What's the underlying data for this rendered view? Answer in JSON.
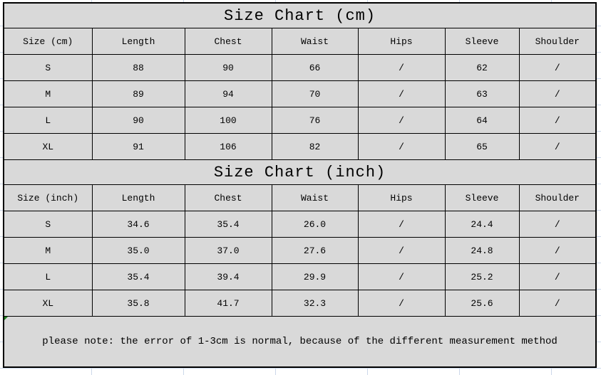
{
  "colors": {
    "cell_fill": "#d9d9d9",
    "border": "#000000",
    "background_grid": "#ccd8ea",
    "error_marker_green": "#1e7e1e"
  },
  "chart_data": [
    {
      "type": "table",
      "title": "Size Chart (cm)",
      "columns": [
        "Size (cm)",
        "Length",
        "Chest",
        "Waist",
        "Hips",
        "Sleeve",
        "Shoulder"
      ],
      "rows": [
        [
          "S",
          "88",
          "90",
          "66",
          "/",
          "62",
          "/"
        ],
        [
          "M",
          "89",
          "94",
          "70",
          "/",
          "63",
          "/"
        ],
        [
          "L",
          "90",
          "100",
          "76",
          "/",
          "64",
          "/"
        ],
        [
          "XL",
          "91",
          "106",
          "82",
          "/",
          "65",
          "/"
        ]
      ]
    },
    {
      "type": "table",
      "title": "Size Chart (inch)",
      "columns": [
        "Size (inch)",
        "Length",
        "Chest",
        "Waist",
        "Hips",
        "Sleeve",
        "Shoulder"
      ],
      "rows": [
        [
          "S",
          "34.6",
          "35.4",
          "26.0",
          "/",
          "24.4",
          "/"
        ],
        [
          "M",
          "35.0",
          "37.0",
          "27.6",
          "/",
          "24.8",
          "/"
        ],
        [
          "L",
          "35.4",
          "39.4",
          "29.9",
          "/",
          "25.2",
          "/"
        ],
        [
          "XL",
          "35.8",
          "41.7",
          "32.3",
          "/",
          "25.6",
          "/"
        ]
      ]
    }
  ],
  "note": {
    "text": "please note: the error of 1-3cm is normal, because of the different measurement method"
  }
}
